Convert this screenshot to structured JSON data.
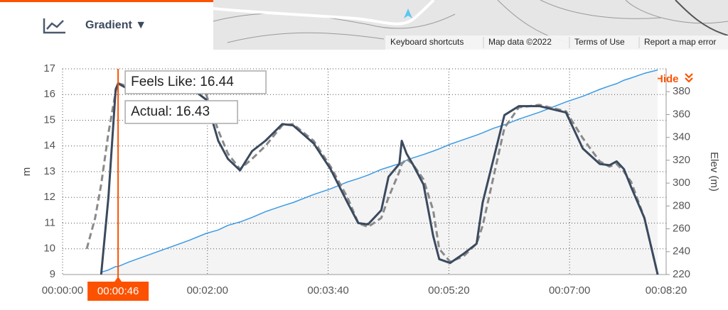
{
  "header": {
    "metric": "Gradient ▼"
  },
  "map_attribution": [
    "Keyboard shortcuts",
    "Map data ©2022",
    "Terms of Use",
    "Report a map error"
  ],
  "hide_label": "Hide",
  "chart_data": {
    "type": "line",
    "x": [
      20,
      27,
      32,
      38,
      44,
      46,
      55,
      84,
      105,
      119,
      129,
      137,
      147,
      157,
      168,
      182,
      191,
      208,
      222,
      236,
      245,
      253,
      264,
      270,
      279,
      281,
      285,
      290,
      299,
      307,
      312,
      321,
      332,
      343,
      348,
      357,
      366,
      378,
      395,
      417,
      431,
      445,
      453,
      459,
      465,
      471,
      482,
      493
    ],
    "xlim": [
      0,
      500
    ],
    "xticks": [
      {
        "value": 0,
        "label": "00:00:00"
      },
      {
        "value": 120,
        "label": "00:02:00"
      },
      {
        "value": 220,
        "label": "00:03:40"
      },
      {
        "value": 320,
        "label": "00:05:20"
      },
      {
        "value": 420,
        "label": "00:07:00"
      },
      {
        "value": 500,
        "label": "00:08:20"
      }
    ],
    "ylabel": "m",
    "ylim": [
      9,
      17
    ],
    "yticks": [
      9,
      10,
      11,
      12,
      13,
      14,
      15,
      16,
      17
    ],
    "y2label": "Elev (m)",
    "y2lim": [
      220,
      400
    ],
    "y2ticks": [
      220,
      240,
      260,
      280,
      300,
      320,
      340,
      360,
      380
    ],
    "grid": true,
    "series": [
      {
        "axis": "y2",
        "color": "#3b9be6",
        "fill": "#f4f4f4",
        "style": "area",
        "values": [
          null,
          null,
          222,
          224,
          227,
          227,
          231,
          242,
          250,
          256,
          259,
          263,
          266,
          270,
          275,
          280,
          283,
          290,
          295,
          301,
          304,
          307,
          312,
          314,
          317,
          318,
          320,
          322,
          325,
          328,
          330,
          334,
          338,
          342,
          344,
          348,
          351,
          356,
          362,
          371,
          376,
          382,
          385,
          387,
          390,
          392,
          396,
          399
        ]
      },
      {
        "color": "#8a8a8a",
        "style": "dashed",
        "values": [
          10.0,
          11.2,
          12.5,
          14.5,
          16.1,
          16.44,
          16.3,
          16.3,
          16.3,
          16.0,
          14.6,
          13.7,
          13.1,
          13.5,
          14.0,
          14.8,
          14.85,
          14.2,
          13.2,
          12.0,
          11.0,
          10.85,
          11.2,
          12.0,
          13.0,
          13.3,
          13.5,
          13.3,
          12.7,
          11.5,
          10.0,
          9.5,
          9.7,
          10.2,
          10.9,
          12.8,
          14.7,
          15.5,
          15.6,
          15.35,
          14.3,
          13.4,
          13.2,
          13.3,
          13.0,
          12.6,
          11.2,
          9.0
        ]
      },
      {
        "color": "#3b4a5e",
        "style": "solid",
        "values": [
          null,
          null,
          9.0,
          12.0,
          16.2,
          16.43,
          16.2,
          16.3,
          16.3,
          15.8,
          14.2,
          13.5,
          13.05,
          13.8,
          14.2,
          14.85,
          14.8,
          14.1,
          13.1,
          11.8,
          11.0,
          10.95,
          11.5,
          12.8,
          13.3,
          14.2,
          13.7,
          13.3,
          12.5,
          10.5,
          9.6,
          9.45,
          9.8,
          10.2,
          11.8,
          13.5,
          15.2,
          15.55,
          15.55,
          15.3,
          13.9,
          13.3,
          13.25,
          13.4,
          13.1,
          12.4,
          11.2,
          9.0
        ]
      }
    ],
    "cursor": {
      "x": 46,
      "label": "00:00:46",
      "color": "#fc5200"
    },
    "tooltips": [
      "Feels Like: 16.44",
      "Actual: 16.43"
    ]
  }
}
